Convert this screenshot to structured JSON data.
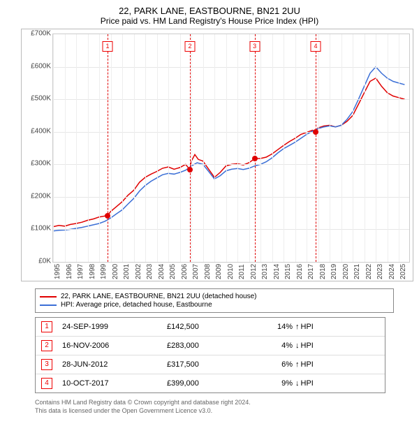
{
  "title": "22, PARK LANE, EASTBOURNE, BN21 2UU",
  "subtitle": "Price paid vs. HM Land Registry's House Price Index (HPI)",
  "chart": {
    "type": "line",
    "background_color": "#ffffff",
    "grid_color": "#e6e6e6",
    "border_color": "#cccccc",
    "title_fontsize": 13,
    "label_fontsize": 10,
    "line_width": 1.5,
    "x": {
      "min": 1995,
      "max": 2025.9,
      "ticks": [
        1995,
        1996,
        1997,
        1998,
        1999,
        2000,
        2001,
        2002,
        2003,
        2004,
        2005,
        2006,
        2007,
        2008,
        2009,
        2010,
        2011,
        2012,
        2013,
        2014,
        2015,
        2016,
        2017,
        2018,
        2019,
        2020,
        2021,
        2022,
        2023,
        2024,
        2025
      ]
    },
    "y": {
      "min": 0,
      "max": 700000,
      "prefix": "£",
      "suffix": "K",
      "divide": 1000,
      "ticks": [
        0,
        100000,
        200000,
        300000,
        400000,
        500000,
        600000,
        700000
      ]
    },
    "series": [
      {
        "name": "22, PARK LANE, EASTBOURNE, BN21 2UU (detached house)",
        "color": "#e00000",
        "data": [
          [
            1995,
            108000
          ],
          [
            1995.5,
            112000
          ],
          [
            1996,
            110000
          ],
          [
            1996.5,
            115000
          ],
          [
            1997,
            118000
          ],
          [
            1997.5,
            122000
          ],
          [
            1998,
            128000
          ],
          [
            1998.5,
            132000
          ],
          [
            1999,
            138000
          ],
          [
            1999.73,
            142500
          ],
          [
            2000,
            155000
          ],
          [
            2000.5,
            170000
          ],
          [
            2001,
            185000
          ],
          [
            2001.5,
            205000
          ],
          [
            2002,
            220000
          ],
          [
            2002.5,
            245000
          ],
          [
            2003,
            260000
          ],
          [
            2003.5,
            270000
          ],
          [
            2004,
            278000
          ],
          [
            2004.5,
            288000
          ],
          [
            2005,
            292000
          ],
          [
            2005.5,
            285000
          ],
          [
            2006,
            290000
          ],
          [
            2006.5,
            300000
          ],
          [
            2006.88,
            283000
          ],
          [
            2007,
            310000
          ],
          [
            2007.3,
            330000
          ],
          [
            2007.6,
            315000
          ],
          [
            2008,
            310000
          ],
          [
            2008.5,
            285000
          ],
          [
            2009,
            260000
          ],
          [
            2009.5,
            275000
          ],
          [
            2010,
            295000
          ],
          [
            2010.5,
            300000
          ],
          [
            2011,
            302000
          ],
          [
            2011.5,
            298000
          ],
          [
            2012,
            305000
          ],
          [
            2012.49,
            317500
          ],
          [
            2013,
            318000
          ],
          [
            2013.5,
            322000
          ],
          [
            2014,
            332000
          ],
          [
            2014.5,
            345000
          ],
          [
            2015,
            358000
          ],
          [
            2015.5,
            370000
          ],
          [
            2016,
            380000
          ],
          [
            2016.5,
            392000
          ],
          [
            2017,
            398000
          ],
          [
            2017.5,
            405000
          ],
          [
            2017.78,
            399000
          ],
          [
            2018,
            412000
          ],
          [
            2018.5,
            418000
          ],
          [
            2019,
            420000
          ],
          [
            2019.5,
            415000
          ],
          [
            2020,
            420000
          ],
          [
            2020.5,
            432000
          ],
          [
            2021,
            450000
          ],
          [
            2021.5,
            485000
          ],
          [
            2022,
            520000
          ],
          [
            2022.5,
            555000
          ],
          [
            2023,
            565000
          ],
          [
            2023.5,
            540000
          ],
          [
            2024,
            520000
          ],
          [
            2024.5,
            510000
          ],
          [
            2025,
            505000
          ],
          [
            2025.5,
            500000
          ]
        ]
      },
      {
        "name": "HPI: Average price, detached house, Eastbourne",
        "color": "#3b6fd6",
        "data": [
          [
            1995,
            95000
          ],
          [
            1995.5,
            97000
          ],
          [
            1996,
            98000
          ],
          [
            1996.5,
            100000
          ],
          [
            1997,
            103000
          ],
          [
            1997.5,
            106000
          ],
          [
            1998,
            110000
          ],
          [
            1998.5,
            114000
          ],
          [
            1999,
            118000
          ],
          [
            1999.5,
            125000
          ],
          [
            2000,
            135000
          ],
          [
            2000.5,
            148000
          ],
          [
            2001,
            160000
          ],
          [
            2001.5,
            178000
          ],
          [
            2002,
            195000
          ],
          [
            2002.5,
            218000
          ],
          [
            2003,
            235000
          ],
          [
            2003.5,
            248000
          ],
          [
            2004,
            258000
          ],
          [
            2004.5,
            268000
          ],
          [
            2005,
            272000
          ],
          [
            2005.5,
            270000
          ],
          [
            2006,
            275000
          ],
          [
            2006.5,
            282000
          ],
          [
            2007,
            295000
          ],
          [
            2007.5,
            305000
          ],
          [
            2008,
            300000
          ],
          [
            2008.5,
            278000
          ],
          [
            2009,
            255000
          ],
          [
            2009.5,
            265000
          ],
          [
            2010,
            280000
          ],
          [
            2010.5,
            285000
          ],
          [
            2011,
            287000
          ],
          [
            2011.5,
            284000
          ],
          [
            2012,
            288000
          ],
          [
            2012.5,
            295000
          ],
          [
            2013,
            300000
          ],
          [
            2013.5,
            308000
          ],
          [
            2014,
            320000
          ],
          [
            2014.5,
            335000
          ],
          [
            2015,
            348000
          ],
          [
            2015.5,
            358000
          ],
          [
            2016,
            368000
          ],
          [
            2016.5,
            380000
          ],
          [
            2017,
            392000
          ],
          [
            2017.5,
            402000
          ],
          [
            2018,
            410000
          ],
          [
            2018.5,
            415000
          ],
          [
            2019,
            418000
          ],
          [
            2019.5,
            415000
          ],
          [
            2020,
            420000
          ],
          [
            2020.5,
            438000
          ],
          [
            2021,
            462000
          ],
          [
            2021.5,
            500000
          ],
          [
            2022,
            540000
          ],
          [
            2022.5,
            580000
          ],
          [
            2023,
            600000
          ],
          [
            2023.5,
            580000
          ],
          [
            2024,
            565000
          ],
          [
            2024.5,
            555000
          ],
          [
            2025,
            550000
          ],
          [
            2025.5,
            545000
          ]
        ]
      }
    ],
    "event_lines": [
      {
        "x": 1999.73,
        "label": "1"
      },
      {
        "x": 2006.88,
        "label": "2"
      },
      {
        "x": 2012.49,
        "label": "3"
      },
      {
        "x": 2017.78,
        "label": "4"
      }
    ],
    "sale_points": [
      {
        "x": 1999.73,
        "y": 142500
      },
      {
        "x": 2006.88,
        "y": 283000
      },
      {
        "x": 2012.49,
        "y": 317500
      },
      {
        "x": 2017.78,
        "y": 399000
      }
    ],
    "point_color": "#e00000",
    "event_line_color": "#e00000"
  },
  "legend": {
    "items": [
      {
        "color": "#e00000",
        "label": "22, PARK LANE, EASTBOURNE, BN21 2UU (detached house)"
      },
      {
        "color": "#3b6fd6",
        "label": "HPI: Average price, detached house, Eastbourne"
      }
    ]
  },
  "events_table": {
    "rows": [
      {
        "n": "1",
        "date": "24-SEP-1999",
        "price": "£142,500",
        "pct": "14%",
        "arrow": "↑",
        "suffix": "HPI"
      },
      {
        "n": "2",
        "date": "16-NOV-2006",
        "price": "£283,000",
        "pct": "4%",
        "arrow": "↓",
        "suffix": "HPI"
      },
      {
        "n": "3",
        "date": "28-JUN-2012",
        "price": "£317,500",
        "pct": "6%",
        "arrow": "↑",
        "suffix": "HPI"
      },
      {
        "n": "4",
        "date": "10-OCT-2017",
        "price": "£399,000",
        "pct": "9%",
        "arrow": "↓",
        "suffix": "HPI"
      }
    ]
  },
  "footer": {
    "line1": "Contains HM Land Registry data © Crown copyright and database right 2024.",
    "line2": "This data is licensed under the Open Government Licence v3.0."
  }
}
